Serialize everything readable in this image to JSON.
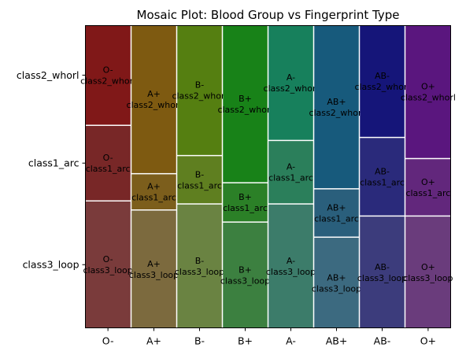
{
  "chart_data": {
    "type": "mosaic",
    "title": "Mosaic Plot: Blood Group vs Fingerprint Type",
    "categories": [
      "O-",
      "A+",
      "B-",
      "B+",
      "A-",
      "AB+",
      "AB-",
      "O+"
    ],
    "row_labels": [
      "class2_whorl",
      "class1_arc",
      "class3_loop"
    ],
    "column_share_percent": [
      12.5,
      12.5,
      12.5,
      12.5,
      12.5,
      12.5,
      12.5,
      12.5
    ],
    "series": [
      {
        "name": "class3_loop",
        "values": [
          42.0,
          39.0,
          41.0,
          35.0,
          41.0,
          30.0,
          37.0,
          37.0
        ]
      },
      {
        "name": "class1_arc",
        "values": [
          25.0,
          12.0,
          16.0,
          13.0,
          21.0,
          16.0,
          26.0,
          19.0
        ]
      },
      {
        "name": "class2_whorl",
        "values": [
          33.0,
          49.0,
          43.0,
          52.0,
          38.0,
          54.0,
          37.0,
          44.0
        ]
      }
    ],
    "colors": {
      "O-": [
        "#7a3b3b",
        "#782727",
        "#801818"
      ],
      "A+": [
        "#7c6a3e",
        "#7c5e1c",
        "#7e5a11"
      ],
      "B-": [
        "#6a8342",
        "#5f7f20",
        "#557f11"
      ],
      "B+": [
        "#3c8040",
        "#2b8027",
        "#188218"
      ],
      "A-": [
        "#3c7c6a",
        "#2b7f5b",
        "#17805c"
      ],
      "AB+": [
        "#3c6a80",
        "#2a5f7c",
        "#175a7c"
      ],
      "AB-": [
        "#3c3c7c",
        "#2a2a7b",
        "#151579"
      ],
      "O+": [
        "#6a3c7c",
        "#62277c",
        "#5a167e"
      ]
    },
    "grid": false,
    "legend": "none"
  }
}
